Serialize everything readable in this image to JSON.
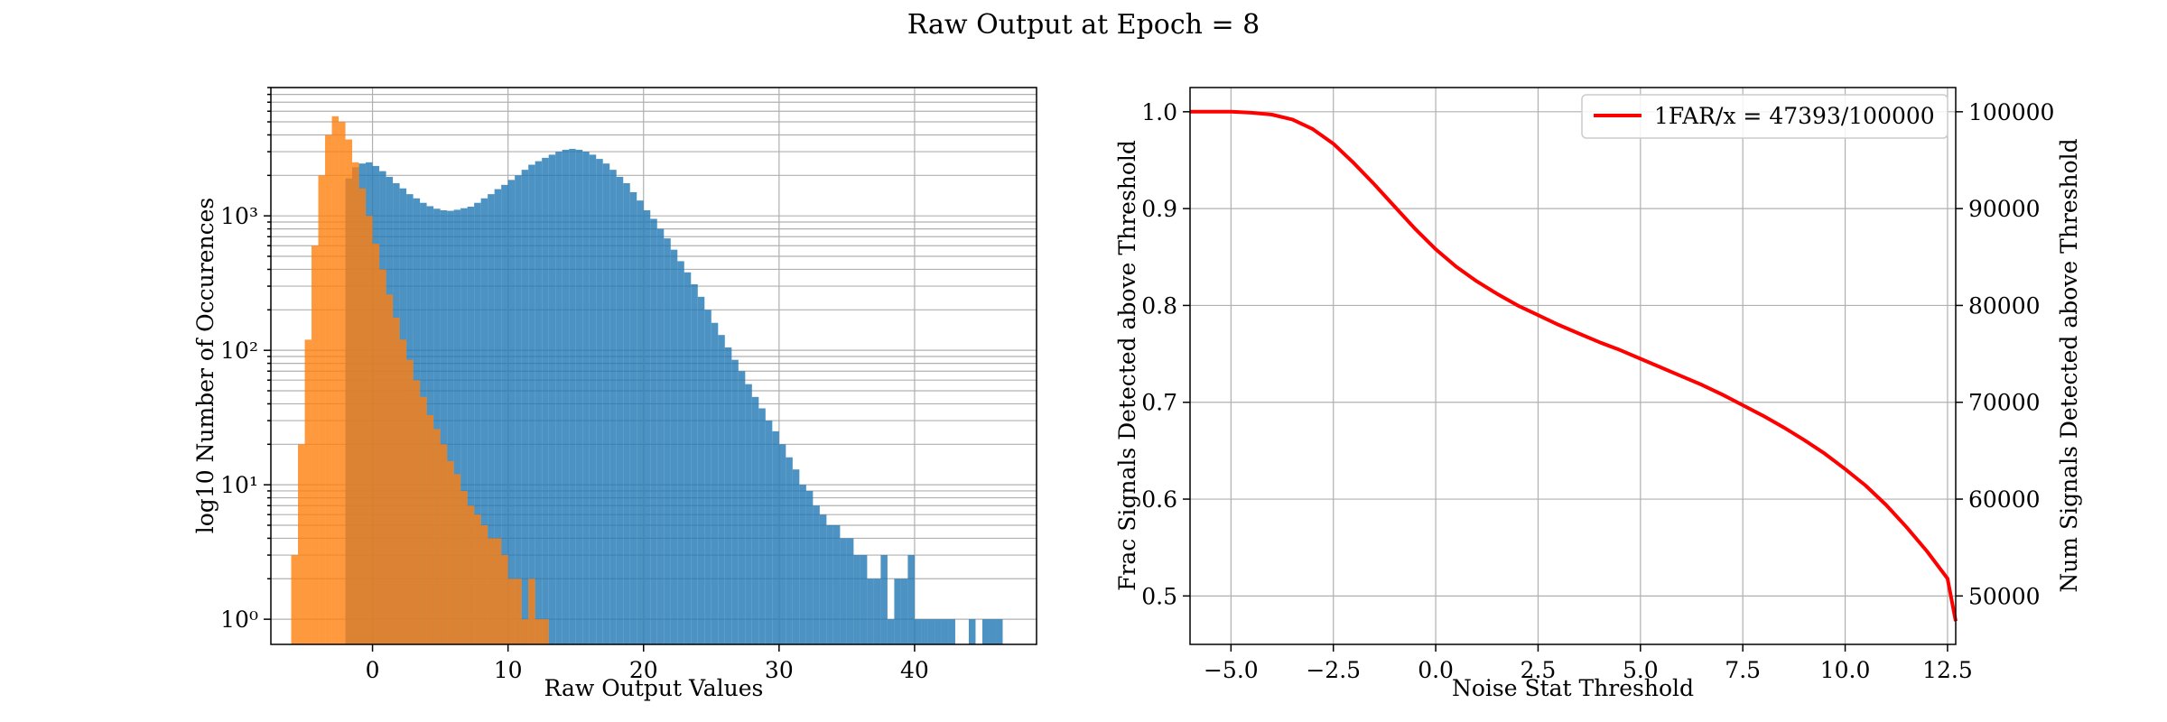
{
  "figure": {
    "suptitle": "Raw Output at Epoch = 8"
  },
  "chart_data": [
    {
      "type": "histogram",
      "xlabel": "Raw Output Values",
      "ylabel": "log10 Number of Occurences",
      "yscale": "log",
      "xlim": [
        -7.5,
        49
      ],
      "ylim": [
        0.65,
        9000
      ],
      "xticks": [
        0,
        10,
        20,
        30,
        40
      ],
      "yticks": [
        1,
        10,
        100,
        1000
      ],
      "ytick_labels": [
        "10⁰",
        "10¹",
        "10²",
        "10³"
      ],
      "grid": true,
      "bin_width": 0.5,
      "series": [
        {
          "color": "#1f77b4",
          "alpha": 0.8,
          "bins": [
            {
              "x": -2.0,
              "y": 1900
            },
            {
              "x": -1.5,
              "y": 2300
            },
            {
              "x": -1.0,
              "y": 2450
            },
            {
              "x": -0.5,
              "y": 2500
            },
            {
              "x": 0.0,
              "y": 2350
            },
            {
              "x": 0.5,
              "y": 2150
            },
            {
              "x": 1.0,
              "y": 1950
            },
            {
              "x": 1.5,
              "y": 1750
            },
            {
              "x": 2.0,
              "y": 1600
            },
            {
              "x": 2.5,
              "y": 1450
            },
            {
              "x": 3.0,
              "y": 1350
            },
            {
              "x": 3.5,
              "y": 1250
            },
            {
              "x": 4.0,
              "y": 1180
            },
            {
              "x": 4.5,
              "y": 1130
            },
            {
              "x": 5.0,
              "y": 1100
            },
            {
              "x": 5.5,
              "y": 1090
            },
            {
              "x": 6.0,
              "y": 1110
            },
            {
              "x": 6.5,
              "y": 1140
            },
            {
              "x": 7.0,
              "y": 1170
            },
            {
              "x": 7.5,
              "y": 1250
            },
            {
              "x": 8.0,
              "y": 1350
            },
            {
              "x": 8.5,
              "y": 1450
            },
            {
              "x": 9.0,
              "y": 1580
            },
            {
              "x": 9.5,
              "y": 1700
            },
            {
              "x": 10.0,
              "y": 1850
            },
            {
              "x": 10.5,
              "y": 2000
            },
            {
              "x": 11.0,
              "y": 2200
            },
            {
              "x": 11.5,
              "y": 2400
            },
            {
              "x": 12.0,
              "y": 2550
            },
            {
              "x": 12.5,
              "y": 2700
            },
            {
              "x": 13.0,
              "y": 2850
            },
            {
              "x": 13.5,
              "y": 3000
            },
            {
              "x": 14.0,
              "y": 3100
            },
            {
              "x": 14.5,
              "y": 3150
            },
            {
              "x": 15.0,
              "y": 3100
            },
            {
              "x": 15.5,
              "y": 3000
            },
            {
              "x": 16.0,
              "y": 2850
            },
            {
              "x": 16.5,
              "y": 2650
            },
            {
              "x": 17.0,
              "y": 2450
            },
            {
              "x": 17.5,
              "y": 2200
            },
            {
              "x": 18.0,
              "y": 1950
            },
            {
              "x": 18.5,
              "y": 1750
            },
            {
              "x": 19.0,
              "y": 1500
            },
            {
              "x": 19.5,
              "y": 1300
            },
            {
              "x": 20.0,
              "y": 1100
            },
            {
              "x": 20.5,
              "y": 950
            },
            {
              "x": 21.0,
              "y": 800
            },
            {
              "x": 21.5,
              "y": 680
            },
            {
              "x": 22.0,
              "y": 560
            },
            {
              "x": 22.5,
              "y": 460
            },
            {
              "x": 23.0,
              "y": 380
            },
            {
              "x": 23.5,
              "y": 310
            },
            {
              "x": 24.0,
              "y": 250
            },
            {
              "x": 24.5,
              "y": 200
            },
            {
              "x": 25.0,
              "y": 160
            },
            {
              "x": 25.5,
              "y": 130
            },
            {
              "x": 26.0,
              "y": 105
            },
            {
              "x": 26.5,
              "y": 85
            },
            {
              "x": 27.0,
              "y": 70
            },
            {
              "x": 27.5,
              "y": 56
            },
            {
              "x": 28.0,
              "y": 45
            },
            {
              "x": 28.5,
              "y": 37
            },
            {
              "x": 29.0,
              "y": 30
            },
            {
              "x": 29.5,
              "y": 25
            },
            {
              "x": 30.0,
              "y": 20
            },
            {
              "x": 30.5,
              "y": 16
            },
            {
              "x": 31.0,
              "y": 13
            },
            {
              "x": 31.5,
              "y": 10
            },
            {
              "x": 32.0,
              "y": 9
            },
            {
              "x": 32.5,
              "y": 7
            },
            {
              "x": 33.0,
              "y": 6
            },
            {
              "x": 33.5,
              "y": 5
            },
            {
              "x": 34.0,
              "y": 5
            },
            {
              "x": 34.5,
              "y": 4
            },
            {
              "x": 35.0,
              "y": 4
            },
            {
              "x": 35.5,
              "y": 3
            },
            {
              "x": 36.0,
              "y": 3
            },
            {
              "x": 36.5,
              "y": 2
            },
            {
              "x": 37.0,
              "y": 2
            },
            {
              "x": 37.5,
              "y": 3
            },
            {
              "x": 38.0,
              "y": 1
            },
            {
              "x": 38.5,
              "y": 2
            },
            {
              "x": 39.0,
              "y": 2
            },
            {
              "x": 39.5,
              "y": 3
            },
            {
              "x": 40.0,
              "y": 1
            },
            {
              "x": 40.5,
              "y": 1
            },
            {
              "x": 41.0,
              "y": 1
            },
            {
              "x": 41.5,
              "y": 1
            },
            {
              "x": 42.0,
              "y": 1
            },
            {
              "x": 42.5,
              "y": 1
            },
            {
              "x": 44.0,
              "y": 1
            },
            {
              "x": 45.0,
              "y": 1
            },
            {
              "x": 45.5,
              "y": 1
            },
            {
              "x": 46.0,
              "y": 1
            }
          ]
        },
        {
          "color": "#ff7f0e",
          "alpha": 0.8,
          "bins": [
            {
              "x": -6.0,
              "y": 3
            },
            {
              "x": -5.5,
              "y": 20
            },
            {
              "x": -5.0,
              "y": 120
            },
            {
              "x": -4.5,
              "y": 600
            },
            {
              "x": -4.0,
              "y": 2000
            },
            {
              "x": -3.5,
              "y": 4000
            },
            {
              "x": -3.0,
              "y": 5500
            },
            {
              "x": -2.5,
              "y": 5000
            },
            {
              "x": -2.0,
              "y": 3700
            },
            {
              "x": -1.5,
              "y": 2500
            },
            {
              "x": -1.0,
              "y": 1600
            },
            {
              "x": -0.5,
              "y": 1000
            },
            {
              "x": 0.0,
              "y": 620
            },
            {
              "x": 0.5,
              "y": 400
            },
            {
              "x": 1.0,
              "y": 260
            },
            {
              "x": 1.5,
              "y": 175
            },
            {
              "x": 2.0,
              "y": 120
            },
            {
              "x": 2.5,
              "y": 85
            },
            {
              "x": 3.0,
              "y": 60
            },
            {
              "x": 3.5,
              "y": 45
            },
            {
              "x": 4.0,
              "y": 33
            },
            {
              "x": 4.5,
              "y": 26
            },
            {
              "x": 5.0,
              "y": 20
            },
            {
              "x": 5.5,
              "y": 15
            },
            {
              "x": 6.0,
              "y": 12
            },
            {
              "x": 6.5,
              "y": 9
            },
            {
              "x": 7.0,
              "y": 7
            },
            {
              "x": 7.5,
              "y": 6
            },
            {
              "x": 8.0,
              "y": 5
            },
            {
              "x": 8.5,
              "y": 4
            },
            {
              "x": 9.0,
              "y": 4
            },
            {
              "x": 9.5,
              "y": 3
            },
            {
              "x": 10.0,
              "y": 2
            },
            {
              "x": 10.5,
              "y": 2
            },
            {
              "x": 11.0,
              "y": 1
            },
            {
              "x": 11.5,
              "y": 2
            },
            {
              "x": 12.0,
              "y": 1
            },
            {
              "x": 12.5,
              "y": 1
            }
          ]
        }
      ]
    },
    {
      "type": "line",
      "xlabel": "Noise Stat Threshold",
      "ylabel": "Frac Signals Detected above Threshold",
      "ylabel_right": "Num Signals Detected above Threshold",
      "xlim": [
        -6.0,
        12.7
      ],
      "ylim": [
        0.45,
        1.025
      ],
      "ylim_right": [
        45000,
        102500
      ],
      "xticks": [
        -5.0,
        -2.5,
        0.0,
        2.5,
        5.0,
        7.5,
        10.0,
        12.5
      ],
      "xtick_labels": [
        "−5.0",
        "−2.5",
        "0.0",
        "2.5",
        "5.0",
        "7.5",
        "10.0",
        "12.5"
      ],
      "yticks": [
        0.5,
        0.6,
        0.7,
        0.8,
        0.9,
        1.0
      ],
      "ytick_labels": [
        "0.5",
        "0.6",
        "0.7",
        "0.8",
        "0.9",
        "1.0"
      ],
      "yticks_right": [
        50000,
        60000,
        70000,
        80000,
        90000,
        100000
      ],
      "ytick_labels_right": [
        "50000",
        "60000",
        "70000",
        "80000",
        "90000",
        "100000"
      ],
      "grid": true,
      "legend_position": "top-right",
      "series": [
        {
          "name": "1FAR/x = 47393/100000",
          "color": "#ff0000",
          "x": [
            -6.0,
            -5.5,
            -5.0,
            -4.5,
            -4.0,
            -3.5,
            -3.0,
            -2.5,
            -2.0,
            -1.5,
            -1.0,
            -0.5,
            0.0,
            0.5,
            1.0,
            1.5,
            2.0,
            2.5,
            3.0,
            3.5,
            4.0,
            4.5,
            5.0,
            5.5,
            6.0,
            6.5,
            7.0,
            7.5,
            8.0,
            8.5,
            9.0,
            9.5,
            10.0,
            10.5,
            11.0,
            11.5,
            12.0,
            12.5,
            12.7
          ],
          "y": [
            1.0,
            1.0,
            1.0,
            0.999,
            0.997,
            0.992,
            0.982,
            0.967,
            0.947,
            0.925,
            0.902,
            0.879,
            0.858,
            0.84,
            0.825,
            0.812,
            0.8,
            0.79,
            0.78,
            0.771,
            0.762,
            0.754,
            0.745,
            0.736,
            0.727,
            0.718,
            0.708,
            0.697,
            0.686,
            0.674,
            0.661,
            0.647,
            0.631,
            0.614,
            0.594,
            0.571,
            0.546,
            0.518,
            0.474
          ]
        }
      ]
    }
  ]
}
